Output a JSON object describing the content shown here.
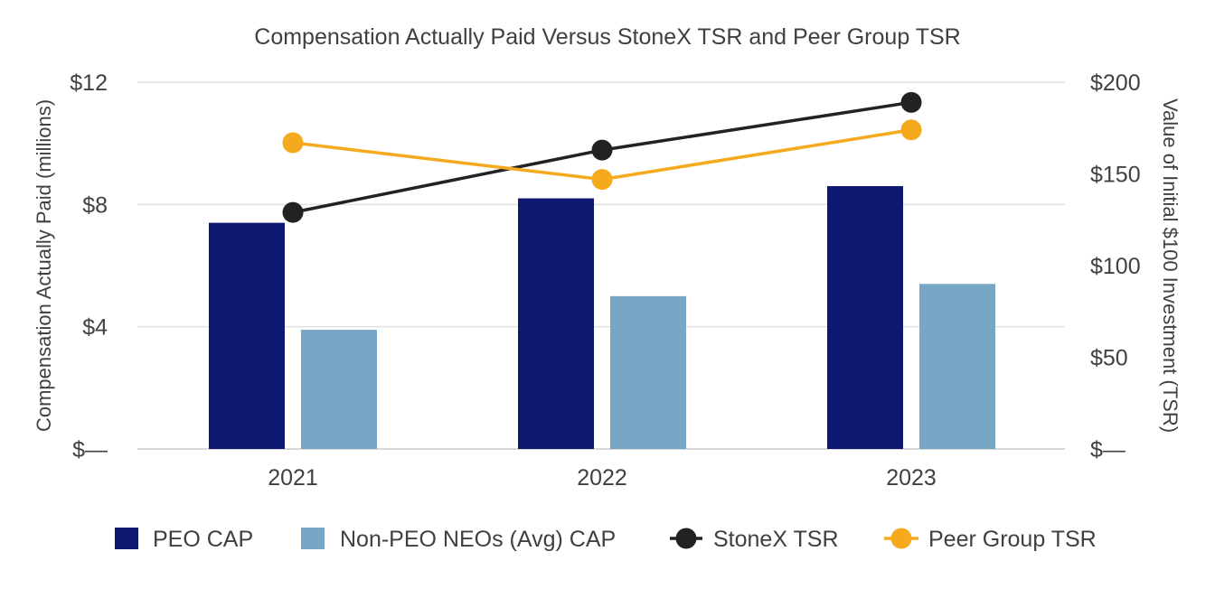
{
  "chart_data": {
    "type": "bar",
    "title": "Compensation Actually Paid Versus StoneX TSR and Peer Group TSR",
    "categories": [
      "2021",
      "2022",
      "2023"
    ],
    "ylabel_left": "Compensation Actually Paid (millions)",
    "ylabel_right": "Value of Initial $100 Investment (TSR)",
    "left_axis": {
      "ylim": [
        0,
        12
      ],
      "ticks": [
        0,
        4,
        8,
        12
      ],
      "tick_labels": [
        "$—",
        "$4",
        "$8",
        "$12"
      ]
    },
    "right_axis": {
      "ylim": [
        0,
        200
      ],
      "ticks": [
        0,
        50,
        100,
        150,
        200
      ],
      "tick_labels": [
        "$—",
        "$50",
        "$100",
        "$150",
        "$200"
      ]
    },
    "grid": true,
    "legend_position": "bottom",
    "bar_series": [
      {
        "name": "PEO CAP",
        "values": [
          7.4,
          8.2,
          8.6
        ],
        "color": "#0f1870",
        "axis": "left"
      },
      {
        "name": "Non-PEO NEOs (Avg) CAP",
        "values": [
          3.9,
          5.0,
          5.4
        ],
        "color": "#78a6c5",
        "axis": "left"
      }
    ],
    "line_series": [
      {
        "name": "StoneX TSR",
        "values": [
          129,
          163,
          189
        ],
        "color": "#222222",
        "axis": "right"
      },
      {
        "name": "Peer Group TSR",
        "values": [
          167,
          147,
          174
        ],
        "color": "#f5a91d",
        "axis": "right"
      }
    ]
  }
}
